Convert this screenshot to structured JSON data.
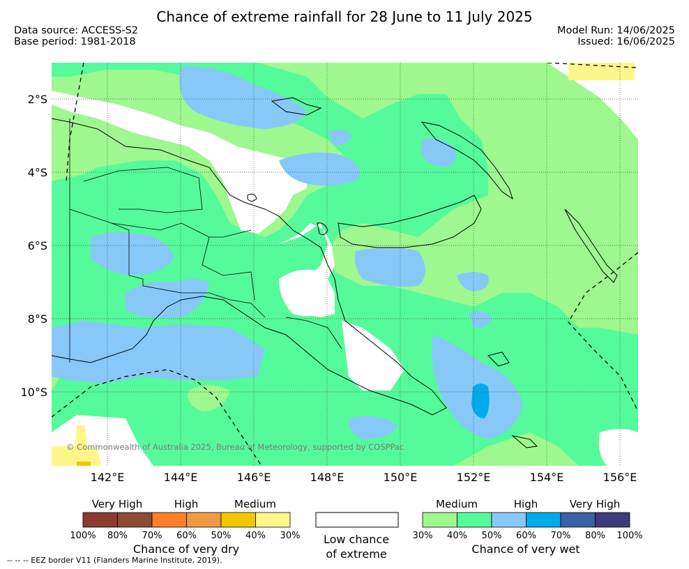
{
  "header": {
    "title": "Chance of extreme rainfall for 28 June to 11 July 2025",
    "data_source": "Data source: ACCESS-S2",
    "base_period": "Base period: 1981-2018",
    "model_run": "Model Run: 14/06/2025",
    "issued": "Issued: 16/06/2025"
  },
  "map": {
    "lat_labels": [
      "2°S",
      "4°S",
      "6°S",
      "8°S",
      "10°S"
    ],
    "lon_labels": [
      "142°E",
      "144°E",
      "146°E",
      "148°E",
      "150°E",
      "152°E",
      "154°E",
      "156°E"
    ],
    "copyright": "© Commonwealth of Australia 2025, Bureau of Meteorology, supported by COSPPac",
    "colors": {
      "wet_medium": "#9ef78f",
      "wet_medium_high": "#55fa9a",
      "wet_high": "#87c8f8",
      "wet_very_high": "#00aaeb",
      "dry_medium": "#fef68a",
      "dry_medium_high": "#f0c800",
      "low_chance": "#ffffff"
    }
  },
  "legend": {
    "dry": {
      "groups": [
        "Very High",
        "High",
        "Medium"
      ],
      "colors": [
        "#8b3a2e",
        "#8c4b35",
        "#ff7f27",
        "#ee9944",
        "#f0c800",
        "#fef68a"
      ],
      "ticks": [
        "100%",
        "80%",
        "70%",
        "60%",
        "50%",
        "40%",
        "30%"
      ],
      "caption": "Chance of very dry"
    },
    "neutral": {
      "caption_line1": "Low chance",
      "caption_line2": "of extreme"
    },
    "wet": {
      "groups": [
        "Medium",
        "High",
        "Very High"
      ],
      "colors": [
        "#9ef78f",
        "#55fa9a",
        "#87c8f8",
        "#00aaeb",
        "#3a62a4",
        "#3c3c7a"
      ],
      "ticks": [
        "30%",
        "40%",
        "50%",
        "60%",
        "70%",
        "80%",
        "100%"
      ],
      "caption": "Chance of very wet"
    }
  },
  "footer": {
    "eez_note": "--  --  -- EEZ border V11 (Flanders Marine Institute, 2019)."
  }
}
